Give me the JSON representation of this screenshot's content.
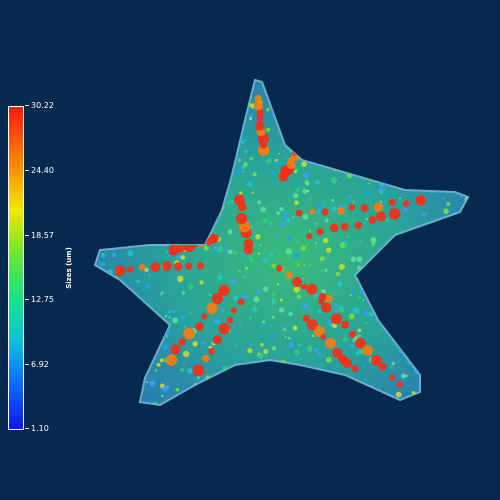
{
  "colorbar": {
    "title": "Sizes (um)",
    "ticks": [
      "30.22",
      "24.40",
      "18.57",
      "12.75",
      "6.92",
      "1.10"
    ],
    "min": 1.1,
    "max": 30.22,
    "colors": [
      "#ff1a10",
      "#ff8a00",
      "#f2e800",
      "#6ee830",
      "#16e28a",
      "#10c4d8",
      "#0a6cff",
      "#0a16f0"
    ]
  },
  "scene": {
    "subject": "starfish-shaped porous structure",
    "background_color": "#062a4e"
  }
}
